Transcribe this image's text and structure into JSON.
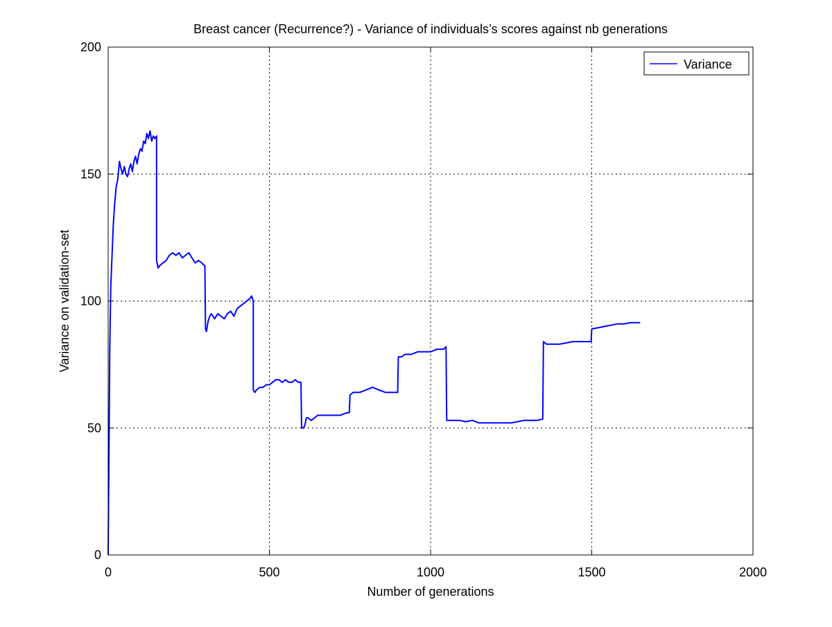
{
  "chart_data": {
    "type": "line",
    "title": "Breast cancer (Recurrence?) - Variance of individuals’s scores against nb generations",
    "xlabel": "Number of generations",
    "ylabel": "Variance on validation-set",
    "xlim": [
      0,
      2000
    ],
    "ylim": [
      0,
      200
    ],
    "xticks": [
      0,
      500,
      1000,
      1500,
      2000
    ],
    "yticks": [
      0,
      50,
      100,
      150,
      200
    ],
    "grid": true,
    "legend_position": "top-right",
    "series": [
      {
        "name": "Variance",
        "color": "#0000ff",
        "x": [
          0,
          2,
          5,
          8,
          12,
          16,
          20,
          25,
          30,
          35,
          40,
          45,
          50,
          55,
          60,
          65,
          70,
          75,
          80,
          85,
          90,
          95,
          100,
          105,
          110,
          115,
          120,
          125,
          130,
          135,
          140,
          145,
          150,
          150,
          155,
          160,
          170,
          180,
          190,
          200,
          210,
          220,
          230,
          240,
          250,
          260,
          270,
          280,
          290,
          298,
          300,
          302,
          305,
          310,
          315,
          320,
          330,
          340,
          350,
          360,
          370,
          380,
          390,
          400,
          410,
          420,
          430,
          440,
          445,
          450,
          450,
          455,
          460,
          470,
          480,
          490,
          500,
          510,
          520,
          530,
          540,
          550,
          560,
          570,
          580,
          590,
          598,
          600,
          605,
          610,
          615,
          620,
          630,
          640,
          650,
          660,
          670,
          680,
          700,
          720,
          740,
          748,
          750,
          760,
          780,
          800,
          820,
          840,
          860,
          880,
          898,
          900,
          910,
          920,
          940,
          960,
          980,
          1000,
          1020,
          1040,
          1048,
          1050,
          1070,
          1090,
          1110,
          1130,
          1150,
          1170,
          1190,
          1210,
          1230,
          1250,
          1270,
          1290,
          1310,
          1330,
          1348,
          1350,
          1360,
          1380,
          1400,
          1420,
          1440,
          1460,
          1480,
          1498,
          1500,
          1520,
          1540,
          1560,
          1580,
          1600,
          1620,
          1640,
          1650
        ],
        "y": [
          0,
          30,
          80,
          105,
          118,
          130,
          138,
          145,
          148,
          155,
          152,
          150,
          153,
          150,
          149,
          152,
          154,
          151,
          155,
          157,
          154,
          158,
          160,
          159,
          163,
          162,
          166,
          164,
          167,
          163,
          165,
          164,
          165,
          116,
          113,
          114,
          115,
          116,
          118,
          119,
          118,
          119,
          117,
          118,
          119,
          117,
          115,
          116,
          115,
          114,
          114,
          89,
          88,
          92,
          94,
          95,
          93,
          95,
          94,
          93,
          95,
          96,
          94,
          97,
          98,
          99,
          100,
          101,
          102,
          100,
          65,
          64,
          65,
          66,
          66,
          67,
          67,
          68,
          69,
          69,
          68,
          69,
          68,
          68,
          69,
          68,
          68,
          50,
          50,
          51,
          54,
          54,
          53,
          54,
          55,
          55,
          55,
          55,
          55,
          55,
          56,
          56,
          63,
          64,
          64,
          65,
          66,
          65,
          64,
          64,
          64,
          78,
          78,
          79,
          79,
          80,
          80,
          80,
          81,
          81,
          82,
          53,
          53,
          53,
          52.5,
          53,
          52,
          52,
          52,
          52,
          52,
          52,
          52.5,
          53,
          53,
          53,
          53.5,
          84,
          83,
          83,
          83,
          83.5,
          84,
          84,
          84,
          84,
          89,
          89.5,
          90,
          90.5,
          91,
          91,
          91.5,
          91.5,
          91.5
        ]
      }
    ]
  }
}
